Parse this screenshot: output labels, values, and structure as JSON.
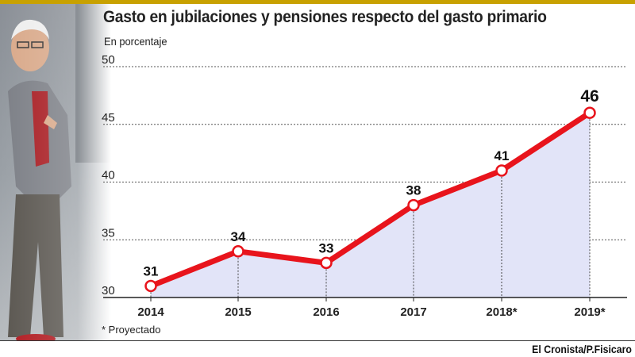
{
  "header": {
    "title": "Gasto en jubilaciones y pensiones respecto del gasto primario",
    "subtitle": "En porcentaje"
  },
  "footer": {
    "note": "* Proyectado",
    "credit": "El Cronista/P.Fisicaro"
  },
  "colors": {
    "line": "#e8141c",
    "area": "#e2e4f8",
    "bar": "#c8a100"
  },
  "chart_data": {
    "type": "line",
    "title": "Gasto en jubilaciones y pensiones respecto del gasto primario",
    "subtitle": "En porcentaje",
    "categories": [
      "2014",
      "2015",
      "2016",
      "2017",
      "2018*",
      "2019*"
    ],
    "series": [
      {
        "values": [
          31,
          34,
          33,
          38,
          41,
          46
        ]
      }
    ],
    "data_labels": [
      "31",
      "34",
      "33",
      "38",
      "41",
      "46"
    ],
    "yticks": [
      "30",
      "35",
      "40",
      "45",
      "50"
    ],
    "ylim": [
      30,
      50
    ],
    "grid": "horizontal-dashed",
    "area_fill": true
  }
}
